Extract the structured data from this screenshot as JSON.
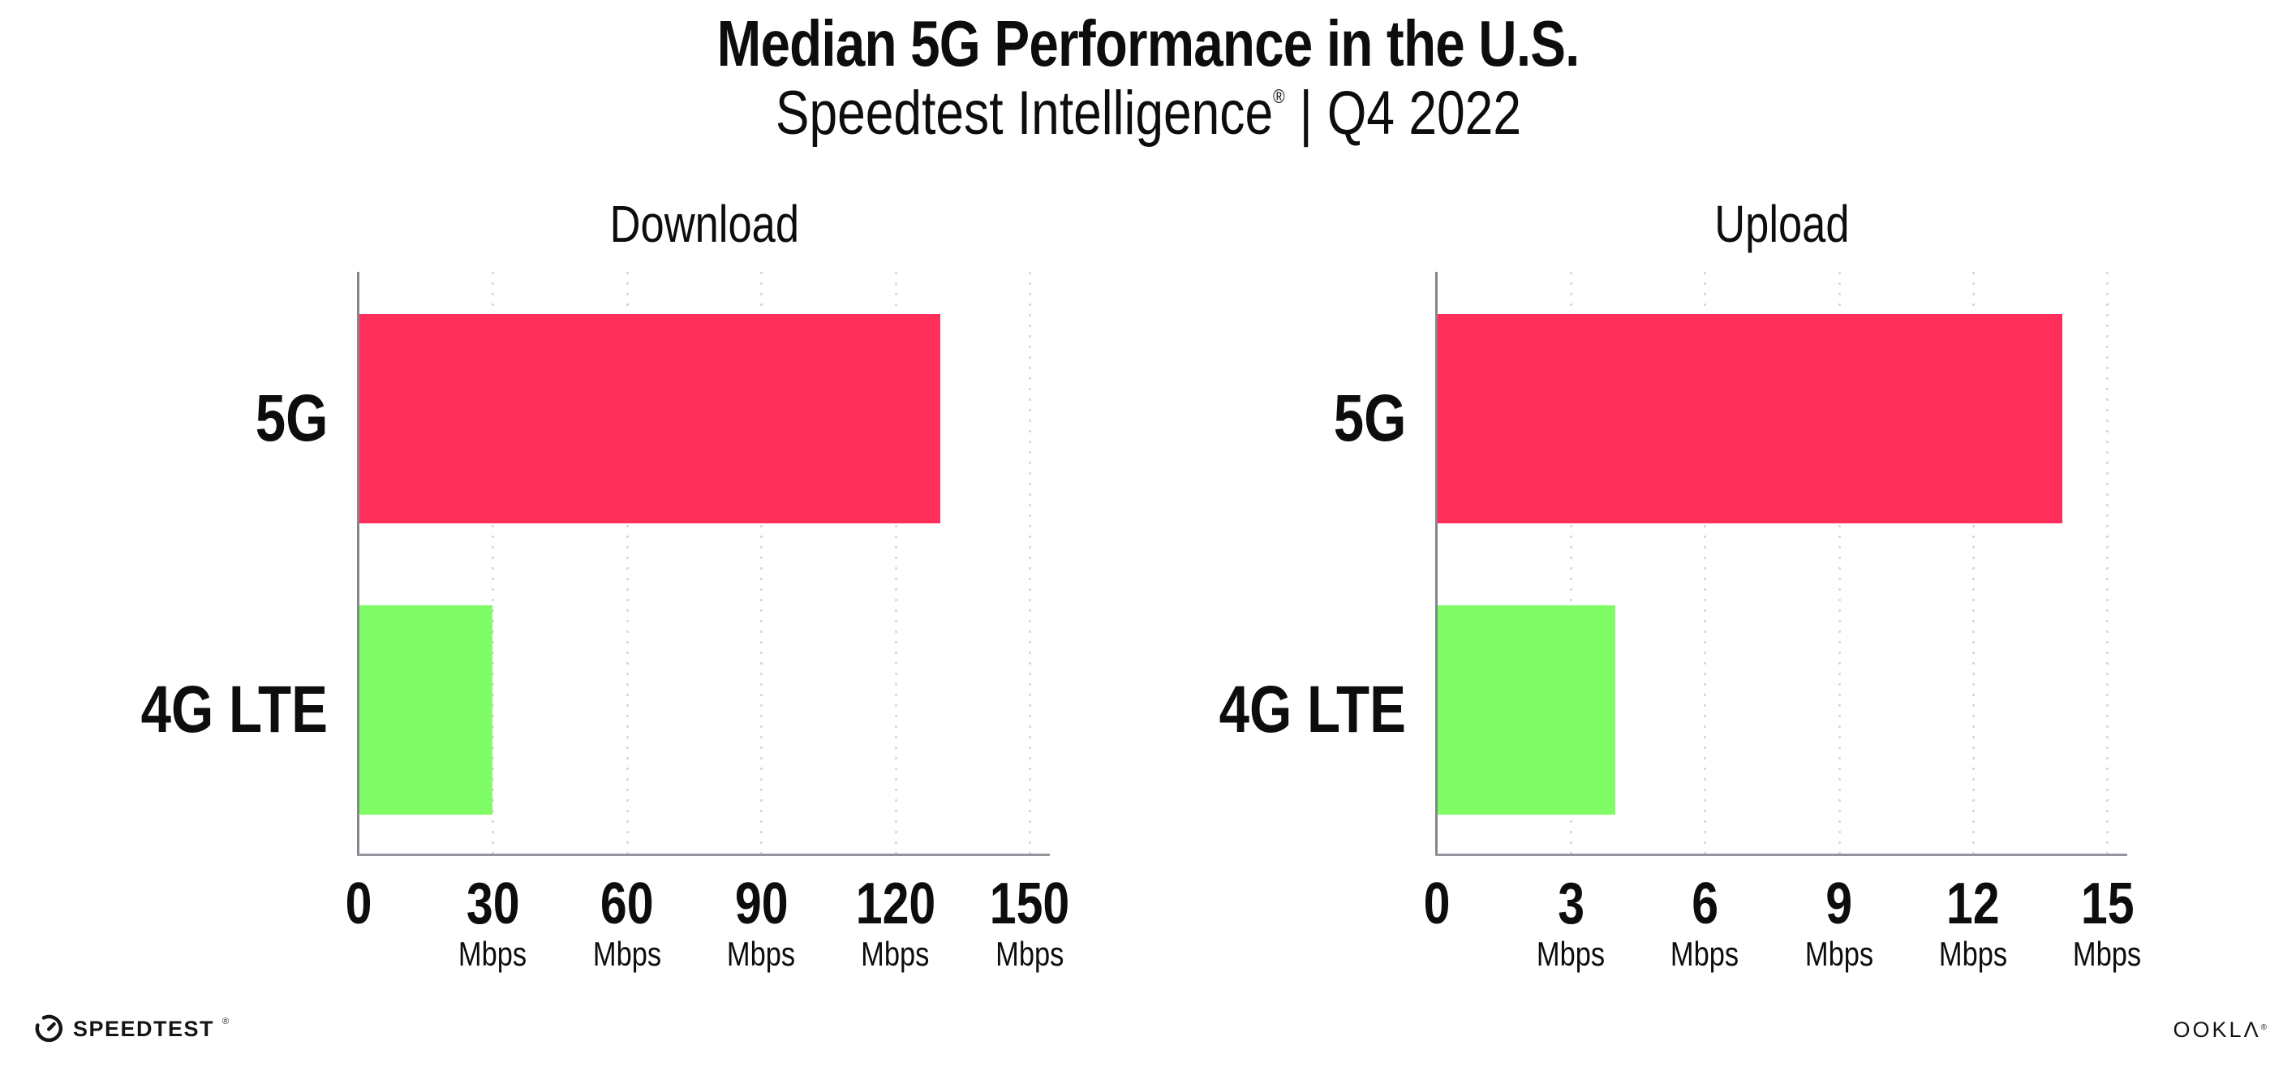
{
  "header": {
    "title": "Median 5G Performance in the U.S.",
    "subtitle_brand": "Speedtest Intelligence",
    "subtitle_reg": "®",
    "subtitle_sep": "|",
    "subtitle_period": "Q4 2022"
  },
  "colors": {
    "bar_5g_pink": "#FF2E5A",
    "bar_4g_green": "#80FC66",
    "gridline": "#D6D6E0",
    "axis": "#94949C",
    "text": "#0D0D0D"
  },
  "chart_data": [
    {
      "type": "bar",
      "orientation": "horizontal",
      "title": "Download",
      "categories": [
        "5G",
        "4G LTE"
      ],
      "values": [
        130,
        30
      ],
      "unit": "Mbps",
      "xlim": [
        0,
        154.5
      ],
      "xticks": [
        0,
        30,
        60,
        90,
        120,
        150
      ],
      "tick_unit_label": "Mbps",
      "bar_colors": [
        "#FF2E5A",
        "#80FC66"
      ],
      "grid": "vertical-dotted",
      "legend": "none"
    },
    {
      "type": "bar",
      "orientation": "horizontal",
      "title": "Upload",
      "categories": [
        "5G",
        "4G LTE"
      ],
      "values": [
        14,
        4
      ],
      "unit": "Mbps",
      "xlim": [
        0,
        15.45
      ],
      "xticks": [
        0,
        3,
        6,
        9,
        12,
        15
      ],
      "tick_unit_label": "Mbps",
      "bar_colors": [
        "#FF2E5A",
        "#80FC66"
      ],
      "grid": "vertical-dotted",
      "legend": "none"
    }
  ],
  "footer": {
    "speedtest_label": "SPEEDTEST",
    "speedtest_reg": "®",
    "ookla_label": "OOKLΛ",
    "ookla_reg": "®"
  }
}
